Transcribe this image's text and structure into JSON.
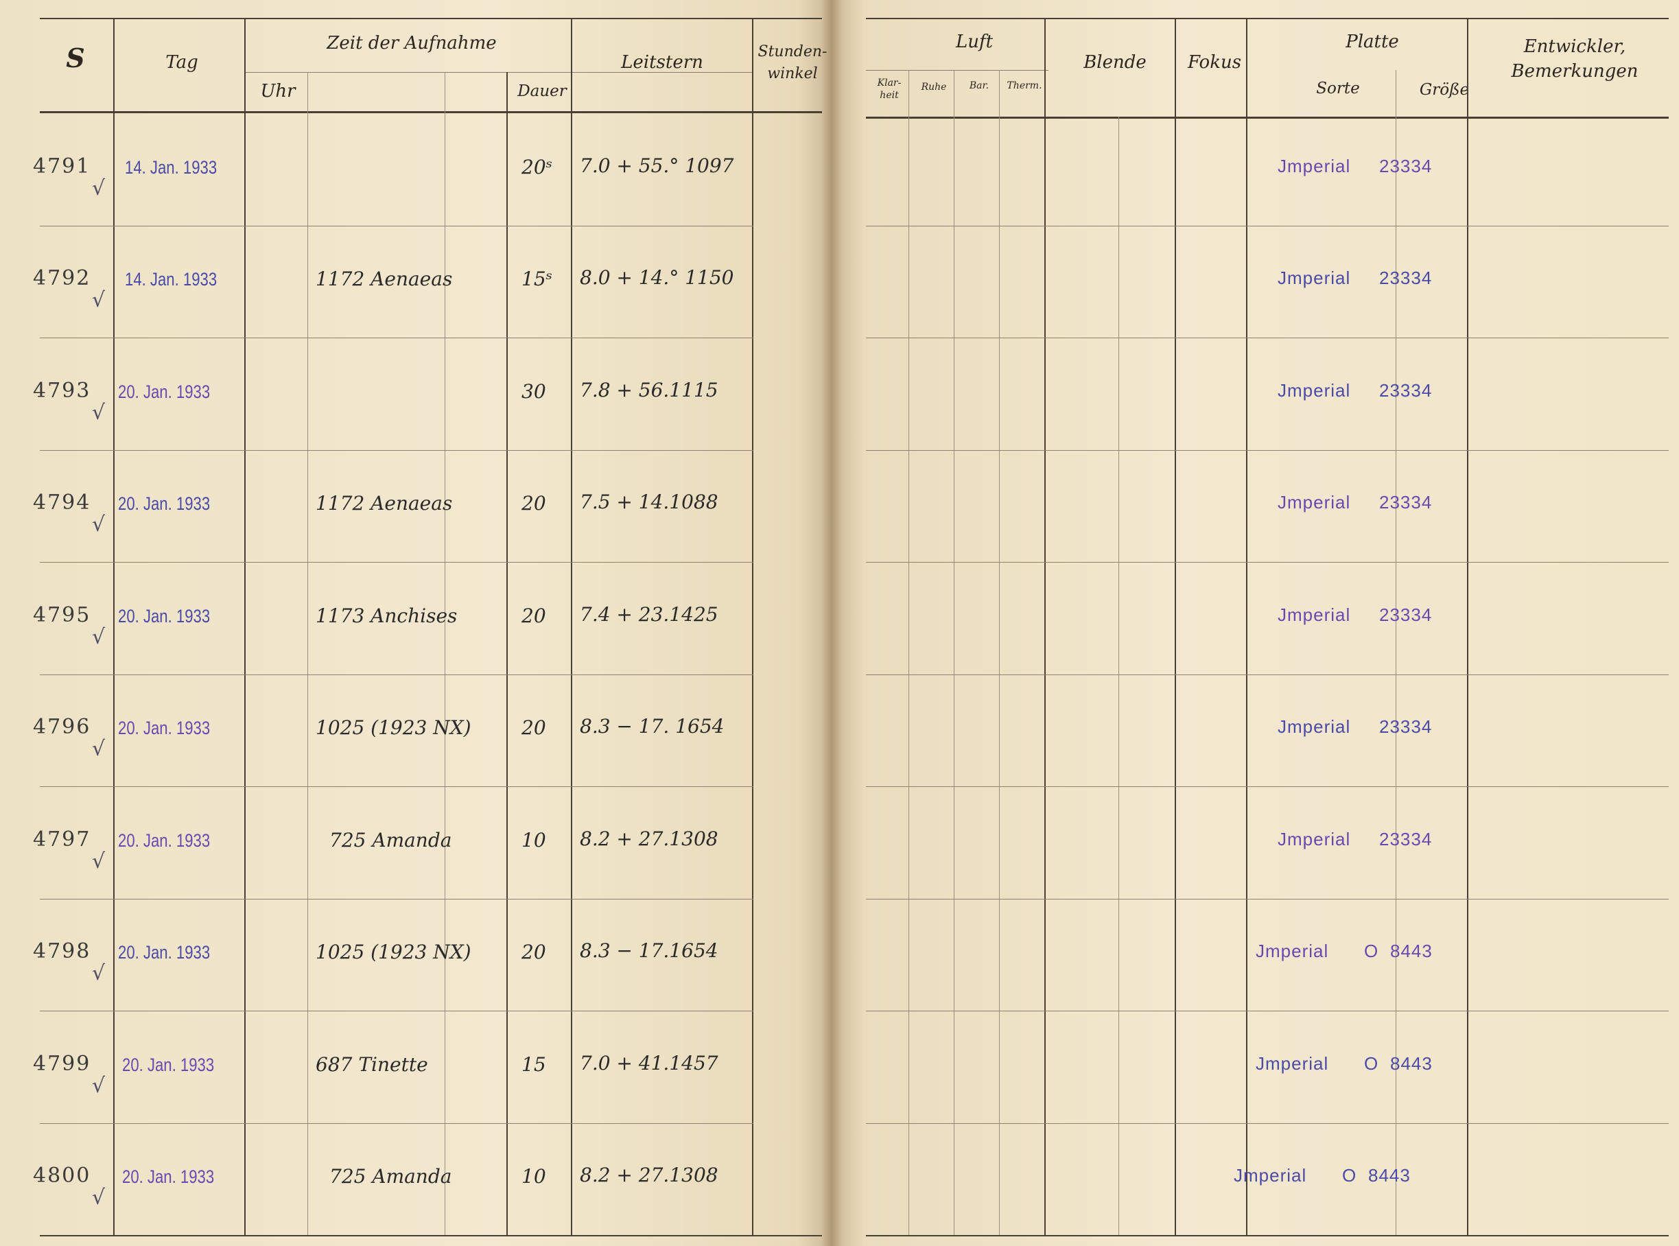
{
  "left_header": {
    "s": "S",
    "tag": "Tag",
    "zeit": "Zeit der Aufnahme",
    "uhr": "Uhr",
    "dauer": "Dauer",
    "leitstern": "Leitstern",
    "stundenwinkel": "Stunden-\nwinkel"
  },
  "right_header": {
    "luft": "Luft",
    "klarheit": "Klar-\nheit",
    "ruhe": "Ruhe",
    "bar": "Bar.",
    "therm": "Therm.",
    "blende": "Blende",
    "fokus": "Fokus",
    "platte": "Platte",
    "sorte": "Sorte",
    "groesse": "Größe",
    "entwickler": "Entwickler,\nBemerkungen"
  },
  "rows": [
    {
      "s": "4791",
      "tag": "14. Jan. 1933",
      "uhr": "",
      "dauer": "20ˢ",
      "leitstern": "7.0  + 55.° 1097",
      "plate_sorte": "Jmperial",
      "plate_zero": "",
      "plate_size": "23334"
    },
    {
      "s": "4792",
      "tag": "14. Jan. 1933",
      "uhr": "1172 Aenaeas",
      "dauer": "15ˢ",
      "leitstern": "8.0  + 14.° 1150",
      "plate_sorte": "Jmperial",
      "plate_zero": "",
      "plate_size": "23334"
    },
    {
      "s": "4793",
      "tag": "20. Jan. 1933",
      "uhr": "",
      "dauer": "30",
      "leitstern": "7.8  + 56.1115",
      "plate_sorte": "Jmperial",
      "plate_zero": "",
      "plate_size": "23334"
    },
    {
      "s": "4794",
      "tag": "20. Jan. 1933",
      "uhr": "1172 Aenaeas",
      "dauer": "20",
      "leitstern": "7.5 + 14.1088",
      "plate_sorte": "Jmperial",
      "plate_zero": "",
      "plate_size": "23334"
    },
    {
      "s": "4795",
      "tag": "20. Jan. 1933",
      "uhr": "1173 Anchises",
      "dauer": "20",
      "leitstern": "7.4  + 23.1425",
      "plate_sorte": "Jmperial",
      "plate_zero": "",
      "plate_size": "23334"
    },
    {
      "s": "4796",
      "tag": "20. Jan. 1933",
      "uhr": "1025 (1923 NX)",
      "dauer": "20",
      "leitstern": "8.3  − 17. 1654",
      "plate_sorte": "Jmperial",
      "plate_zero": "",
      "plate_size": "23334"
    },
    {
      "s": "4797",
      "tag": "20. Jan. 1933",
      "uhr": "725 Amanda",
      "dauer": "10",
      "leitstern": "8.2  + 27.1308",
      "plate_sorte": "Jmperial",
      "plate_zero": "",
      "plate_size": "23334"
    },
    {
      "s": "4798",
      "tag": "20. Jan. 1933",
      "uhr": "1025 (1923 NX)",
      "dauer": "20",
      "leitstern": "8.3  − 17.1654",
      "plate_sorte": "Jmperial",
      "plate_zero": "O",
      "plate_size": "8443"
    },
    {
      "s": "4799",
      "tag": "20. Jan. 1933",
      "uhr": "687 Tinette",
      "dauer": "15",
      "leitstern": "7.0  + 41.1457",
      "plate_sorte": "Jmperial",
      "plate_zero": "O",
      "plate_size": "8443"
    },
    {
      "s": "4800",
      "tag": "20. Jan. 1933",
      "uhr": "725 Amanda",
      "dauer": "10",
      "leitstern": "8.2 + 27.1308",
      "plate_sorte": "Jmperial",
      "plate_zero": "O",
      "plate_size": "8443"
    }
  ],
  "colors": {
    "ink": "#2a2a2a",
    "stamp_blue": "#4a4aa8",
    "stamp_violet": "#6a48b0",
    "paper": "#f3e8cf"
  }
}
